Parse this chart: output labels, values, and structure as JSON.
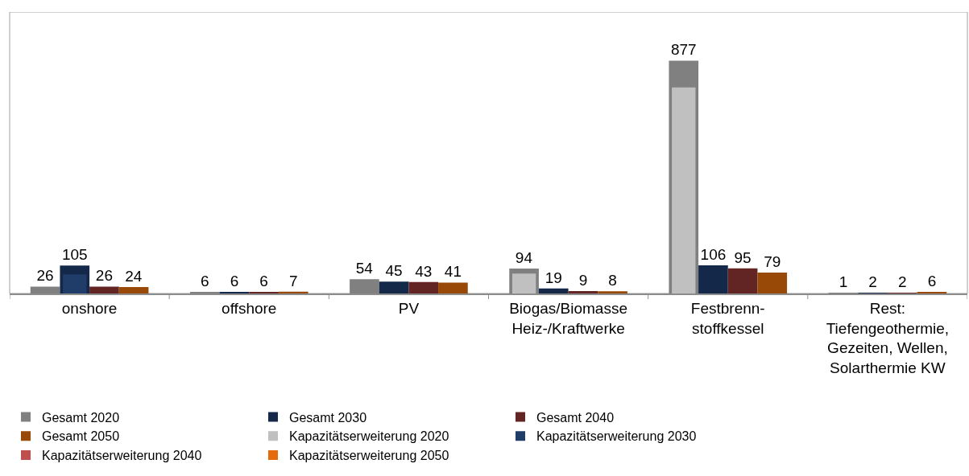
{
  "chart_data": {
    "type": "bar",
    "categories": [
      "onshore",
      "offshore",
      "PV",
      "Biogas/Biomasse\nHeiz-/Kraftwerke",
      "Festbrenn-\nstoffkessel",
      "Rest:\nTiefengeothermie,\nGezeiten, Wellen,\nSolarthermie KW"
    ],
    "ylim": [
      0,
      1060
    ],
    "tick_labels": "x",
    "legend": "bottom",
    "series": [
      {
        "name": "Gesamt 2020",
        "color": "#808080",
        "values": [
          26,
          6,
          54,
          94,
          877,
          1
        ],
        "value_labels": [
          "26",
          "6",
          "54",
          "94",
          "877",
          "1"
        ]
      },
      {
        "name": "Gesamt 2030",
        "color": "#14284a",
        "values": [
          105,
          6,
          45,
          19,
          106,
          2
        ],
        "value_labels": [
          "105",
          "6",
          "45",
          "19",
          "106",
          "2"
        ]
      },
      {
        "name": "Gesamt 2040",
        "color": "#632523",
        "values": [
          26,
          6,
          43,
          9,
          95,
          2
        ],
        "value_labels": [
          "26",
          "6",
          "43",
          "9",
          "95",
          "2"
        ]
      },
      {
        "name": "Gesamt 2050",
        "color": "#984807",
        "values": [
          24,
          7,
          41,
          8,
          79,
          6
        ],
        "value_labels": [
          "24",
          "7",
          "41",
          "8",
          "79",
          "6"
        ]
      },
      {
        "name": "Kapazitätserweiterung 2020",
        "color": "#c0c0c0",
        "values": [
          null,
          null,
          null,
          75,
          776,
          null
        ]
      },
      {
        "name": "Kapazitätserweiterung 2030",
        "color": "#1f3d68",
        "values": [
          72,
          null,
          null,
          null,
          null,
          null
        ]
      },
      {
        "name": "Kapazitätserweiterung 2040",
        "color": "#c0504d",
        "values": [
          null,
          null,
          null,
          null,
          null,
          null
        ]
      },
      {
        "name": "Kapazitätserweiterung 2050",
        "color": "#e46c0a",
        "values": [
          null,
          null,
          null,
          null,
          null,
          null
        ]
      }
    ]
  }
}
